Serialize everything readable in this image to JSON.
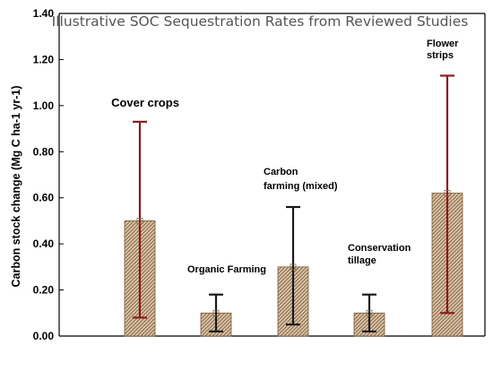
{
  "chart_data": {
    "type": "bar",
    "title": "Illustrative SOC Sequestration Rates from Reviewed Studies",
    "ylabel": "Carbon stock change (Mg C ha-1 yr-1)",
    "xlabel": "",
    "ylim": [
      0,
      1.4
    ],
    "yticks": [
      "0.00",
      "0.20",
      "0.40",
      "0.60",
      "0.80",
      "1.00",
      "1.20",
      "1.40"
    ],
    "grid": false,
    "categories": [
      {
        "label_lines": [
          "Cover crops"
        ],
        "value": 0.5,
        "err_low": 0.08,
        "err_high": 0.93,
        "err_color": "#8b1a1a"
      },
      {
        "label_lines": [
          "Organic Farming"
        ],
        "value": 0.1,
        "err_low": 0.02,
        "err_high": 0.18,
        "err_color": "#1a1a1a"
      },
      {
        "label_lines": [
          "Carbon",
          "farming (mixed)"
        ],
        "value": 0.3,
        "err_low": 0.05,
        "err_high": 0.56,
        "err_color": "#1a1a1a"
      },
      {
        "label_lines": [
          "Conservation",
          "tillage"
        ],
        "value": 0.1,
        "err_low": 0.02,
        "err_high": 0.18,
        "err_color": "#1a1a1a"
      },
      {
        "label_lines": [
          "Flower",
          "strips"
        ],
        "value": 0.62,
        "err_low": 0.1,
        "err_high": 1.13,
        "err_color": "#8b1a1a"
      }
    ],
    "colors": {
      "bar_fill": "#d9c4a8",
      "bar_hatch": "#8a6a4a",
      "bar_border": "#7a5a3a",
      "axis": "#000000"
    }
  }
}
